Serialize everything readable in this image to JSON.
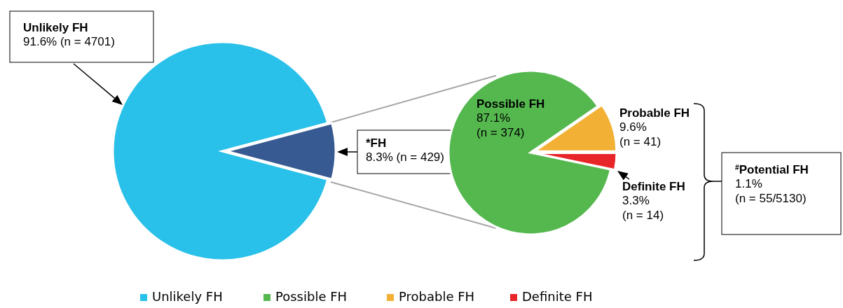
{
  "chart_data": [
    {
      "type": "pie",
      "categories": [
        "Unlikely FH",
        "*FH"
      ],
      "values": [
        91.6,
        8.3
      ],
      "colors": [
        "#29c0ea",
        "#365a91"
      ],
      "value_labels": [
        "91.6% (n = 4701)",
        "8.3% (n = 429)"
      ],
      "legend": "bottom"
    },
    {
      "type": "pie",
      "categories": [
        "Possible FH",
        "Probable FH",
        "Definite FH"
      ],
      "values": [
        87.1,
        9.6,
        3.3
      ],
      "colors": [
        "#55b84f",
        "#f2b134",
        "#e8262a"
      ],
      "value_labels": [
        "87.1%\n(n = 374)",
        "9.6%\n(n = 41)",
        "3.3%\n(n = 14)"
      ],
      "legend": "bottom",
      "annotations": [
        "$^{#}$Potential FH\n1.1%\n(n = 55/5130)"
      ]
    }
  ]
}
